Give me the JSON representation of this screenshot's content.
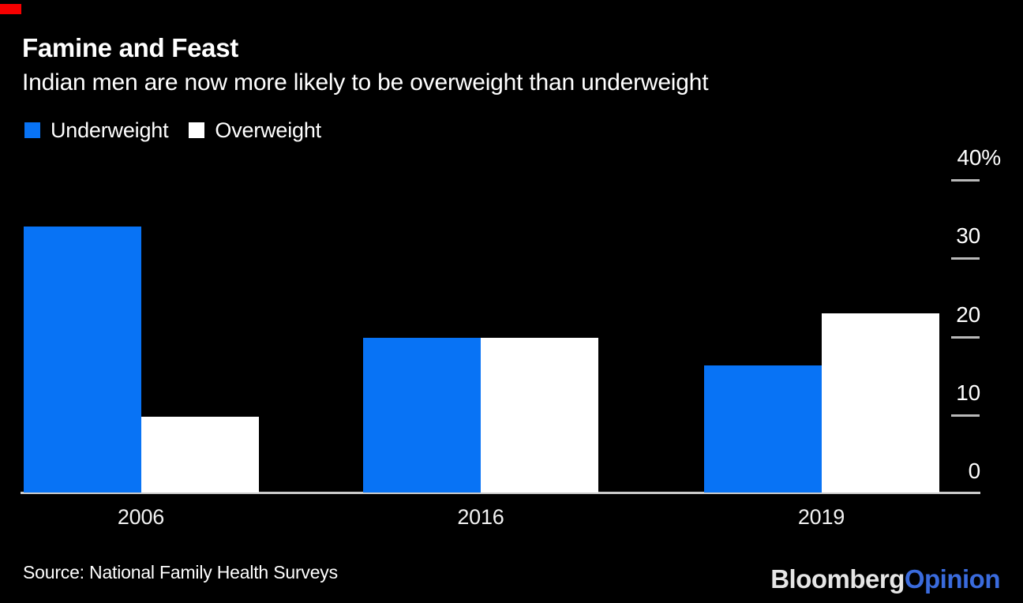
{
  "header": {
    "title": "Famine and Feast",
    "subtitle": "Indian men are now more likely to be overweight than underweight"
  },
  "legend": [
    {
      "label": "Underweight",
      "color": "#0873f5"
    },
    {
      "label": "Overweight",
      "color": "#ffffff"
    }
  ],
  "source": "Source: National Family Health Surveys",
  "brand": {
    "red_tag_color": "#f60000",
    "logo": {
      "bloomberg": "Bloomberg",
      "opinion": "Opinion",
      "opinion_color": "#3a6bdd"
    }
  },
  "chart_data": {
    "type": "bar",
    "title": "Famine and Feast",
    "subtitle": "Indian men are now more likely to be overweight than underweight",
    "categories": [
      "2006",
      "2016",
      "2019"
    ],
    "series": [
      {
        "name": "Underweight",
        "color": "#0873f5",
        "values": [
          34.0,
          19.7,
          16.2
        ]
      },
      {
        "name": "Overweight",
        "color": "#ffffff",
        "values": [
          9.7,
          19.7,
          22.9
        ]
      }
    ],
    "xlabel": "",
    "ylabel": "",
    "ylim": [
      0,
      40
    ],
    "yticks": [
      {
        "label": "40%",
        "value": 40
      },
      {
        "label": "30",
        "value": 30
      },
      {
        "label": "20",
        "value": 20
      },
      {
        "label": "10",
        "value": 10
      },
      {
        "label": "0",
        "value": 0
      }
    ],
    "grid": false,
    "legend_position": "top-left",
    "source": "Source: National Family Health Surveys"
  }
}
